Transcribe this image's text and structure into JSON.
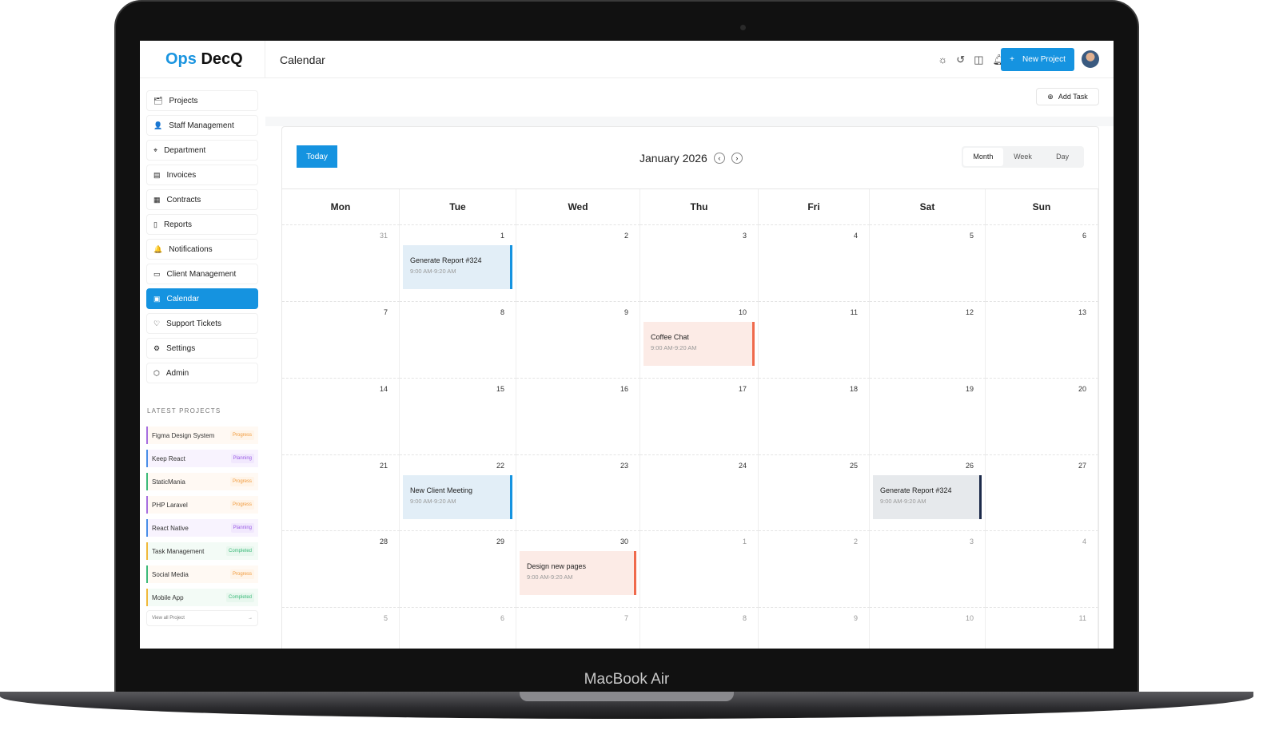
{
  "device_label": "MacBook Air",
  "app": {
    "logo_a": "Ops",
    "logo_b": "DecQ",
    "page_title": "Calendar",
    "new_project": "New Project",
    "add_task": "Add Task",
    "top_icons": [
      "sun-icon",
      "history-icon",
      "sidebar-icon",
      "bell-icon"
    ]
  },
  "sidebar": {
    "items": [
      {
        "label": "Projects",
        "icon": "folder-icon",
        "glyph": "🗂"
      },
      {
        "label": "Staff Management",
        "icon": "user-icon",
        "glyph": "👤"
      },
      {
        "label": "Department",
        "icon": "department-icon",
        "glyph": "⌖"
      },
      {
        "label": "Invoices",
        "icon": "invoice-icon",
        "glyph": "▤"
      },
      {
        "label": "Contracts",
        "icon": "contract-icon",
        "glyph": "▦"
      },
      {
        "label": "Reports",
        "icon": "report-icon",
        "glyph": "▯"
      },
      {
        "label": "Notifications",
        "icon": "bell-icon",
        "glyph": "🔔"
      },
      {
        "label": "Client Management",
        "icon": "client-icon",
        "glyph": "▭"
      },
      {
        "label": "Calendar",
        "icon": "calendar-icon",
        "glyph": "▣",
        "active": true
      },
      {
        "label": "Support Tickets",
        "icon": "heart-icon",
        "glyph": "♡"
      },
      {
        "label": "Settings",
        "icon": "gear-icon",
        "glyph": "⚙"
      },
      {
        "label": "Admin",
        "icon": "shield-icon",
        "glyph": "⬡"
      }
    ],
    "latest_title": "LATEST PROJECTS",
    "projects": [
      {
        "name": "Figma Design System",
        "status": "Progress",
        "color": "#a66ee0"
      },
      {
        "name": "Keep React",
        "status": "Planning",
        "color": "#4a8ee8"
      },
      {
        "name": "StaticMania",
        "status": "Progress",
        "color": "#3cba7a"
      },
      {
        "name": "PHP Laravel",
        "status": "Progress",
        "color": "#a66ee0"
      },
      {
        "name": "React Native",
        "status": "Planning",
        "color": "#4a8ee8"
      },
      {
        "name": "Task Management",
        "status": "Completed",
        "color": "#f0b93a"
      },
      {
        "name": "Social Media",
        "status": "Progress",
        "color": "#3cba7a"
      },
      {
        "name": "Mobile App",
        "status": "Completed",
        "color": "#f0b93a"
      }
    ],
    "view_all": "View all Project"
  },
  "calendar": {
    "today": "Today",
    "month": "January 2026",
    "views": [
      "Month",
      "Week",
      "Day"
    ],
    "active_view": "Month",
    "weekdays": [
      "Mon",
      "Tue",
      "Wed",
      "Thu",
      "Fri",
      "Sat",
      "Sun"
    ],
    "weeks": [
      [
        "31",
        "1",
        "2",
        "3",
        "4",
        "5",
        "6"
      ],
      [
        "7",
        "8",
        "9",
        "10",
        "11",
        "12",
        "13"
      ],
      [
        "14",
        "15",
        "16",
        "17",
        "18",
        "19",
        "20"
      ],
      [
        "21",
        "22",
        "23",
        "24",
        "25",
        "26",
        "27"
      ],
      [
        "28",
        "29",
        "30",
        "1",
        "2",
        "3",
        "4"
      ],
      [
        "5",
        "6",
        "7",
        "8",
        "9",
        "10",
        "11"
      ]
    ],
    "events": [
      {
        "week": 0,
        "day": 1,
        "title": "Generate Report #324",
        "time": "9:00 AM-9:20 AM",
        "bg": "#e2eef7",
        "accent": "#1593e0"
      },
      {
        "week": 1,
        "day": 3,
        "title": "Coffee Chat",
        "time": "9:00 AM-9:20 AM",
        "bg": "#fcebe6",
        "accent": "#ef6a4c"
      },
      {
        "week": 3,
        "day": 1,
        "title": "New Client Meeting",
        "time": "9:00 AM-9:20 AM",
        "bg": "#e2eef7",
        "accent": "#1593e0"
      },
      {
        "week": 3,
        "day": 5,
        "title": "Generate Report #324",
        "time": "9:00 AM-9:20 AM",
        "bg": "#e6e9ec",
        "accent": "#1c2a4a"
      },
      {
        "week": 4,
        "day": 2,
        "title": "Design new pages",
        "time": "9:00 AM-9:20 AM",
        "bg": "#fcebe6",
        "accent": "#ef6a4c"
      }
    ]
  },
  "status_colors": {
    "Progress": [
      "#fff4e8",
      "#f0993a"
    ],
    "Planning": [
      "#f1e8fd",
      "#9b5de5"
    ],
    "Completed": [
      "#e8f7ee",
      "#3cba7a"
    ]
  }
}
